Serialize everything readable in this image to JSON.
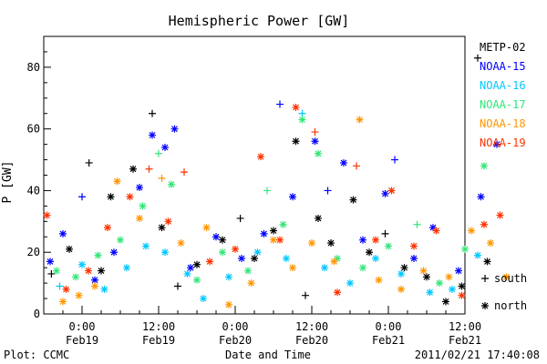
{
  "chart_data": {
    "type": "scatter",
    "title": "Hemispheric Power [GW]",
    "ylabel": "P [GW]",
    "xlabel": "Date and Time",
    "ylim": [
      0,
      90
    ],
    "yticks": [
      0,
      20,
      40,
      60,
      80
    ],
    "xlim_hours": [
      -6,
      60
    ],
    "xticks": [
      {
        "hour": 0,
        "time": "0:00",
        "date": "Feb19"
      },
      {
        "hour": 12,
        "time": "12:00",
        "date": "Feb19"
      },
      {
        "hour": 24,
        "time": "0:00",
        "date": "Feb20"
      },
      {
        "hour": 36,
        "time": "12:00",
        "date": "Feb20"
      },
      {
        "hour": 48,
        "time": "0:00",
        "date": "Feb21"
      },
      {
        "hour": 60,
        "time": "12:00",
        "date": "Feb21"
      }
    ],
    "legend": {
      "placement": "right",
      "markers": [
        {
          "symbol": "plus",
          "label": "south"
        },
        {
          "symbol": "star",
          "label": "north"
        }
      ]
    },
    "series": [
      {
        "name": "METP-02",
        "color": "#000000",
        "points": [
          {
            "t": -4.8,
            "v": 13,
            "h": "s"
          },
          {
            "t": -2.0,
            "v": 21,
            "h": "n"
          },
          {
            "t": 1.1,
            "v": 49,
            "h": "s"
          },
          {
            "t": 3.0,
            "v": 14,
            "h": "n"
          },
          {
            "t": 4.5,
            "v": 38,
            "h": "n"
          },
          {
            "t": 8.0,
            "v": 47,
            "h": "n"
          },
          {
            "t": 11.0,
            "v": 65,
            "h": "s"
          },
          {
            "t": 12.5,
            "v": 28,
            "h": "n"
          },
          {
            "t": 15.0,
            "v": 9,
            "h": "s"
          },
          {
            "t": 18.0,
            "v": 16,
            "h": "n"
          },
          {
            "t": 22.0,
            "v": 24,
            "h": "n"
          },
          {
            "t": 24.8,
            "v": 31,
            "h": "s"
          },
          {
            "t": 27.0,
            "v": 18,
            "h": "n"
          },
          {
            "t": 30.0,
            "v": 27,
            "h": "n"
          },
          {
            "t": 33.5,
            "v": 56,
            "h": "n"
          },
          {
            "t": 35.0,
            "v": 6,
            "h": "s"
          },
          {
            "t": 37.0,
            "v": 31,
            "h": "n"
          },
          {
            "t": 39.0,
            "v": 23,
            "h": "n"
          },
          {
            "t": 42.5,
            "v": 37,
            "h": "n"
          },
          {
            "t": 45.0,
            "v": 20,
            "h": "n"
          },
          {
            "t": 47.5,
            "v": 26,
            "h": "s"
          },
          {
            "t": 50.5,
            "v": 15,
            "h": "n"
          },
          {
            "t": 54.0,
            "v": 12,
            "h": "n"
          },
          {
            "t": 57.0,
            "v": 4,
            "h": "n"
          },
          {
            "t": 59.5,
            "v": 9,
            "h": "n"
          },
          {
            "t": 62.0,
            "v": 83,
            "h": "s"
          },
          {
            "t": 63.5,
            "v": 17,
            "h": "n"
          }
        ]
      },
      {
        "name": "NOAA-15",
        "color": "#0000ff",
        "points": [
          {
            "t": -5.0,
            "v": 17,
            "h": "n"
          },
          {
            "t": -3.0,
            "v": 26,
            "h": "n"
          },
          {
            "t": 0.0,
            "v": 38,
            "h": "s"
          },
          {
            "t": 2.0,
            "v": 11,
            "h": "n"
          },
          {
            "t": 5.0,
            "v": 20,
            "h": "n"
          },
          {
            "t": 9.0,
            "v": 41,
            "h": "n"
          },
          {
            "t": 11.0,
            "v": 58,
            "h": "n"
          },
          {
            "t": 13.0,
            "v": 54,
            "h": "n"
          },
          {
            "t": 14.5,
            "v": 60,
            "h": "n"
          },
          {
            "t": 17.0,
            "v": 15,
            "h": "n"
          },
          {
            "t": 21.0,
            "v": 25,
            "h": "n"
          },
          {
            "t": 25.0,
            "v": 18,
            "h": "n"
          },
          {
            "t": 28.5,
            "v": 26,
            "h": "n"
          },
          {
            "t": 31.0,
            "v": 68,
            "h": "s"
          },
          {
            "t": 33.0,
            "v": 38,
            "h": "n"
          },
          {
            "t": 36.5,
            "v": 56,
            "h": "n"
          },
          {
            "t": 38.5,
            "v": 40,
            "h": "s"
          },
          {
            "t": 41.0,
            "v": 49,
            "h": "n"
          },
          {
            "t": 44.0,
            "v": 24,
            "h": "n"
          },
          {
            "t": 47.5,
            "v": 39,
            "h": "n"
          },
          {
            "t": 49.0,
            "v": 50,
            "h": "s"
          },
          {
            "t": 52.0,
            "v": 18,
            "h": "n"
          },
          {
            "t": 55.0,
            "v": 28,
            "h": "n"
          },
          {
            "t": 59.0,
            "v": 14,
            "h": "n"
          },
          {
            "t": 62.5,
            "v": 38,
            "h": "n"
          },
          {
            "t": 65.0,
            "v": 55,
            "h": "n"
          }
        ]
      },
      {
        "name": "NOAA-16",
        "color": "#00c8ff",
        "points": [
          {
            "t": -3.5,
            "v": 9,
            "h": "s"
          },
          {
            "t": 0.0,
            "v": 16,
            "h": "n"
          },
          {
            "t": 3.5,
            "v": 8,
            "h": "n"
          },
          {
            "t": 7.0,
            "v": 15,
            "h": "n"
          },
          {
            "t": 10.0,
            "v": 22,
            "h": "n"
          },
          {
            "t": 13.0,
            "v": 20,
            "h": "n"
          },
          {
            "t": 16.5,
            "v": 13,
            "h": "n"
          },
          {
            "t": 19.0,
            "v": 5,
            "h": "n"
          },
          {
            "t": 23.0,
            "v": 12,
            "h": "n"
          },
          {
            "t": 27.5,
            "v": 20,
            "h": "n"
          },
          {
            "t": 32.0,
            "v": 18,
            "h": "n"
          },
          {
            "t": 34.5,
            "v": 65,
            "h": "s"
          },
          {
            "t": 38.0,
            "v": 15,
            "h": "n"
          },
          {
            "t": 42.0,
            "v": 10,
            "h": "n"
          },
          {
            "t": 46.0,
            "v": 18,
            "h": "n"
          },
          {
            "t": 50.0,
            "v": 13,
            "h": "n"
          },
          {
            "t": 54.5,
            "v": 7,
            "h": "n"
          },
          {
            "t": 58.0,
            "v": 8,
            "h": "n"
          },
          {
            "t": 62.0,
            "v": 19,
            "h": "n"
          }
        ]
      },
      {
        "name": "NOAA-17",
        "color": "#32e678",
        "points": [
          {
            "t": -4.0,
            "v": 14,
            "h": "n"
          },
          {
            "t": -1.0,
            "v": 12,
            "h": "n"
          },
          {
            "t": 2.5,
            "v": 19,
            "h": "n"
          },
          {
            "t": 6.0,
            "v": 24,
            "h": "n"
          },
          {
            "t": 9.5,
            "v": 35,
            "h": "n"
          },
          {
            "t": 12.0,
            "v": 52,
            "h": "s"
          },
          {
            "t": 14.0,
            "v": 42,
            "h": "n"
          },
          {
            "t": 18.0,
            "v": 11,
            "h": "n"
          },
          {
            "t": 22.0,
            "v": 20,
            "h": "n"
          },
          {
            "t": 26.0,
            "v": 14,
            "h": "n"
          },
          {
            "t": 29.0,
            "v": 40,
            "h": "s"
          },
          {
            "t": 31.5,
            "v": 29,
            "h": "n"
          },
          {
            "t": 34.5,
            "v": 63,
            "h": "n"
          },
          {
            "t": 37.0,
            "v": 52,
            "h": "n"
          },
          {
            "t": 40.0,
            "v": 18,
            "h": "n"
          },
          {
            "t": 44.0,
            "v": 15,
            "h": "n"
          },
          {
            "t": 48.0,
            "v": 22,
            "h": "n"
          },
          {
            "t": 52.5,
            "v": 29,
            "h": "s"
          },
          {
            "t": 56.0,
            "v": 10,
            "h": "n"
          },
          {
            "t": 60.0,
            "v": 21,
            "h": "n"
          },
          {
            "t": 63.0,
            "v": 48,
            "h": "n"
          }
        ]
      },
      {
        "name": "NOAA-18",
        "color": "#ff9600",
        "points": [
          {
            "t": -3.0,
            "v": 4,
            "h": "n"
          },
          {
            "t": -0.5,
            "v": 6,
            "h": "n"
          },
          {
            "t": 2.0,
            "v": 9,
            "h": "n"
          },
          {
            "t": 5.5,
            "v": 43,
            "h": "n"
          },
          {
            "t": 9.0,
            "v": 31,
            "h": "n"
          },
          {
            "t": 12.5,
            "v": 44,
            "h": "s"
          },
          {
            "t": 15.5,
            "v": 23,
            "h": "n"
          },
          {
            "t": 19.5,
            "v": 28,
            "h": "n"
          },
          {
            "t": 23.0,
            "v": 3,
            "h": "n"
          },
          {
            "t": 26.5,
            "v": 10,
            "h": "n"
          },
          {
            "t": 30.0,
            "v": 24,
            "h": "n"
          },
          {
            "t": 33.0,
            "v": 15,
            "h": "n"
          },
          {
            "t": 36.0,
            "v": 23,
            "h": "n"
          },
          {
            "t": 39.5,
            "v": 17,
            "h": "n"
          },
          {
            "t": 43.5,
            "v": 63,
            "h": "n"
          },
          {
            "t": 46.5,
            "v": 11,
            "h": "n"
          },
          {
            "t": 50.0,
            "v": 8,
            "h": "n"
          },
          {
            "t": 53.5,
            "v": 14,
            "h": "n"
          },
          {
            "t": 57.5,
            "v": 12,
            "h": "n"
          },
          {
            "t": 61.0,
            "v": 27,
            "h": "n"
          },
          {
            "t": 64.0,
            "v": 23,
            "h": "n"
          },
          {
            "t": 66.5,
            "v": 12,
            "h": "n"
          }
        ]
      },
      {
        "name": "NOAA-19",
        "color": "#ff3200",
        "points": [
          {
            "t": -5.5,
            "v": 32,
            "h": "n"
          },
          {
            "t": -2.5,
            "v": 8,
            "h": "n"
          },
          {
            "t": 1.0,
            "v": 14,
            "h": "n"
          },
          {
            "t": 4.0,
            "v": 28,
            "h": "n"
          },
          {
            "t": 7.5,
            "v": 38,
            "h": "n"
          },
          {
            "t": 10.5,
            "v": 47,
            "h": "s"
          },
          {
            "t": 13.5,
            "v": 30,
            "h": "n"
          },
          {
            "t": 16.0,
            "v": 46,
            "h": "s"
          },
          {
            "t": 20.0,
            "v": 17,
            "h": "n"
          },
          {
            "t": 24.0,
            "v": 21,
            "h": "n"
          },
          {
            "t": 28.0,
            "v": 51,
            "h": "n"
          },
          {
            "t": 31.0,
            "v": 24,
            "h": "n"
          },
          {
            "t": 33.5,
            "v": 67,
            "h": "n"
          },
          {
            "t": 36.5,
            "v": 59,
            "h": "s"
          },
          {
            "t": 40.0,
            "v": 7,
            "h": "n"
          },
          {
            "t": 43.0,
            "v": 48,
            "h": "s"
          },
          {
            "t": 46.0,
            "v": 24,
            "h": "n"
          },
          {
            "t": 48.5,
            "v": 40,
            "h": "n"
          },
          {
            "t": 52.0,
            "v": 22,
            "h": "n"
          },
          {
            "t": 55.5,
            "v": 27,
            "h": "n"
          },
          {
            "t": 59.5,
            "v": 6,
            "h": "n"
          },
          {
            "t": 63.0,
            "v": 29,
            "h": "n"
          },
          {
            "t": 65.5,
            "v": 32,
            "h": "n"
          }
        ]
      }
    ]
  },
  "footer": {
    "left": "Plot: CCMC",
    "right": "2011/02/21 17:40:08"
  }
}
